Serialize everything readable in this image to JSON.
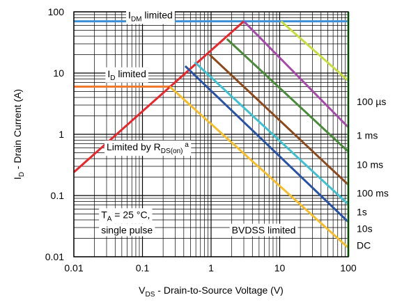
{
  "chart_data": {
    "type": "line",
    "title": "",
    "xlabel": {
      "main": "V",
      "sub": "DS",
      "rest": " - Drain-to-Source Voltage (V)"
    },
    "ylabel": {
      "main": "I",
      "sub": "D",
      "rest": " - Drain Current (A)"
    },
    "xscale": "log",
    "yscale": "log",
    "xlim": [
      0.01,
      100
    ],
    "ylim": [
      0.01,
      100
    ],
    "grid": true,
    "x_ticks": [
      {
        "value": 0.01,
        "label": "0.01"
      },
      {
        "value": 0.1,
        "label": "0.1"
      },
      {
        "value": 1,
        "label": "1"
      },
      {
        "value": 10,
        "label": "10"
      },
      {
        "value": 100,
        "label": "100"
      }
    ],
    "y_ticks": [
      {
        "value": 100,
        "label": "100"
      },
      {
        "value": 10,
        "label": "10"
      },
      {
        "value": 1,
        "label": "1"
      },
      {
        "value": 0.1,
        "label": "0.1"
      },
      {
        "value": 0.01,
        "label": "0.01"
      }
    ],
    "series": [
      {
        "name": "IDM limited",
        "color": "#3b8fd6",
        "points": [
          [
            0.01,
            70
          ],
          [
            100,
            70
          ]
        ]
      },
      {
        "name": "ID limited",
        "color": "#ef7a2e",
        "points": [
          [
            0.01,
            6
          ],
          [
            0.25,
            6
          ]
        ]
      },
      {
        "name": "Limited by RDS(on)",
        "color": "#e8262c",
        "points": [
          [
            0.01,
            0.24
          ],
          [
            3.0,
            70
          ]
        ]
      },
      {
        "name": "100 µs",
        "color": "#c6dd3c",
        "points": [
          [
            10.5,
            70
          ],
          [
            100,
            7.5
          ]
        ]
      },
      {
        "name": "1 ms",
        "color": "#a54aa8",
        "points": [
          [
            3.0,
            70
          ],
          [
            100,
            1.3
          ]
        ]
      },
      {
        "name": "10 ms",
        "color": "#4a8a3a",
        "points": [
          [
            1.7,
            36
          ],
          [
            100,
            0.52
          ]
        ]
      },
      {
        "name": "100 ms",
        "color": "#8a4a1e",
        "points": [
          [
            0.95,
            20
          ],
          [
            100,
            0.15
          ]
        ]
      },
      {
        "name": "1s",
        "color": "#3ec1ce",
        "points": [
          [
            0.58,
            15
          ],
          [
            100,
            0.072
          ]
        ]
      },
      {
        "name": "10s",
        "color": "#2a52a4",
        "points": [
          [
            0.42,
            13
          ],
          [
            100,
            0.037
          ]
        ]
      },
      {
        "name": "DC",
        "color": "#f7be2c",
        "points": [
          [
            0.25,
            6
          ],
          [
            100,
            0.014
          ]
        ]
      },
      {
        "name": "BVDSS limited",
        "color": "#4cc04a",
        "points": [
          [
            100,
            0.01
          ],
          [
            100,
            100
          ]
        ]
      }
    ],
    "curve_labels": [
      {
        "text": "100 µs",
        "x": 100,
        "y": 3.4
      },
      {
        "text": "1 ms",
        "x": 100,
        "y": 0.96
      },
      {
        "text": "10 ms",
        "x": 100,
        "y": 0.32
      },
      {
        "text": "100 ms",
        "x": 100,
        "y": 0.11
      },
      {
        "text": "1s",
        "x": 100,
        "y": 0.054
      },
      {
        "text": "10s",
        "x": 100,
        "y": 0.029
      },
      {
        "text": "DC",
        "x": 100,
        "y": 0.0155
      }
    ],
    "annotations": [
      {
        "parts": [
          {
            "t": "I"
          },
          {
            "t": "DM",
            "sub": true
          },
          {
            "t": " limited"
          }
        ],
        "x": 0.062,
        "y": 78
      },
      {
        "parts": [
          {
            "t": "I"
          },
          {
            "t": "D",
            "sub": true
          },
          {
            "t": " limited"
          }
        ],
        "x": 0.031,
        "y": 8.6
      },
      {
        "parts": [
          {
            "t": "Limited by R"
          },
          {
            "t": "DS(on)",
            "sub": true
          },
          {
            "t": " a",
            "sup": true
          }
        ],
        "x": 0.03,
        "y": 0.55
      },
      {
        "parts": [
          {
            "t": "T"
          },
          {
            "t": "A",
            "sub": true
          },
          {
            "t": " = 25 °C,"
          }
        ],
        "x": 0.025,
        "y": 0.043
      },
      {
        "parts": [
          {
            "t": "single pulse"
          }
        ],
        "x": 0.025,
        "y": 0.024
      },
      {
        "parts": [
          {
            "t": "BVDSS limited"
          }
        ],
        "x": 2.0,
        "y": 0.024
      }
    ]
  }
}
